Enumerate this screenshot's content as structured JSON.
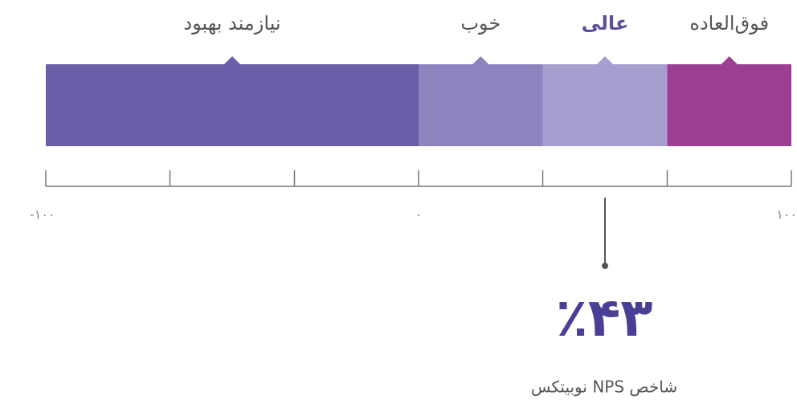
{
  "gauge": {
    "scale": {
      "min": -100,
      "max": 100,
      "ticks": [
        {
          "value": -100,
          "label": "-۱۰۰"
        },
        -66.7,
        -33.3,
        {
          "value": 0,
          "label": "۰"
        },
        33.3,
        66.7,
        {
          "value": 100,
          "label": "۱۰۰"
        }
      ]
    },
    "segments": [
      {
        "label": "نیازمند بهبود",
        "from": -100,
        "to": 0,
        "color": "#695ea8"
      },
      {
        "label": "خوب",
        "from": 0,
        "to": 33.3,
        "color": "#8d84bf"
      },
      {
        "label": "عالی",
        "from": 33.3,
        "to": 66.7,
        "color": "#a69ecf"
      },
      {
        "label": "فوق‌العاده",
        "from": 66.7,
        "to": 100,
        "color": "#9c3f94"
      }
    ],
    "active_segment": 2,
    "active_color": "#5a4fa0",
    "score": "٪۴۳",
    "score_color": "#4a3f97",
    "caption": "شاخص NPS نوبیتکس"
  }
}
